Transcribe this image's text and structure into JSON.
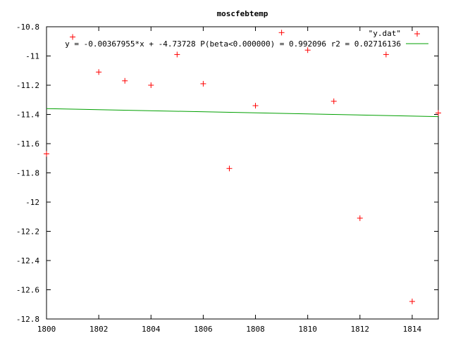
{
  "chart_data": {
    "type": "scatter",
    "title": "moscfebtemp",
    "xlabel": "",
    "ylabel": "",
    "xlim": [
      1800,
      1815
    ],
    "ylim": [
      -12.8,
      -10.8
    ],
    "grid": false,
    "legend_position": "top-right",
    "x_ticks": [
      1800,
      1802,
      1804,
      1806,
      1808,
      1810,
      1812,
      1814
    ],
    "x_tick_labels": [
      "1800",
      "1802",
      "1804",
      "1806",
      "1808",
      "1810",
      "1812",
      "1814"
    ],
    "y_ticks": [
      -10.8,
      -11,
      -11.2,
      -11.4,
      -11.6,
      -11.8,
      -12,
      -12.2,
      -12.4,
      -12.6,
      -12.8
    ],
    "y_tick_labels": [
      "-10.8",
      "-11",
      "-11.2",
      "-11.4",
      "-11.6",
      "-11.8",
      "-12",
      "-12.2",
      "-12.4",
      "-12.6",
      "-12.8"
    ],
    "series": [
      {
        "name": "\"y.dat\"",
        "type": "scatter",
        "color": "#ff0000",
        "marker": "plus",
        "points": [
          {
            "x": 1800,
            "y": -11.67
          },
          {
            "x": 1801,
            "y": -10.87
          },
          {
            "x": 1802,
            "y": -11.11
          },
          {
            "x": 1803,
            "y": -11.17
          },
          {
            "x": 1804,
            "y": -11.2
          },
          {
            "x": 1805,
            "y": -10.99
          },
          {
            "x": 1806,
            "y": -11.19
          },
          {
            "x": 1807,
            "y": -11.77
          },
          {
            "x": 1808,
            "y": -11.34
          },
          {
            "x": 1809,
            "y": -10.84
          },
          {
            "x": 1810,
            "y": -10.96
          },
          {
            "x": 1811,
            "y": -11.31
          },
          {
            "x": 1812,
            "y": -12.11
          },
          {
            "x": 1813,
            "y": -10.99
          },
          {
            "x": 1814,
            "y": -12.68
          },
          {
            "x": 1815,
            "y": -11.39
          }
        ]
      },
      {
        "name": "y = -0.00367955*x + -4.73728 P(beta<0.000000) = 0.992096 r2 = 0.02716136",
        "type": "line",
        "color": "#00a000",
        "points": [
          {
            "x": 1800,
            "y": -11.36
          },
          {
            "x": 1815,
            "y": -11.415
          }
        ]
      }
    ]
  }
}
